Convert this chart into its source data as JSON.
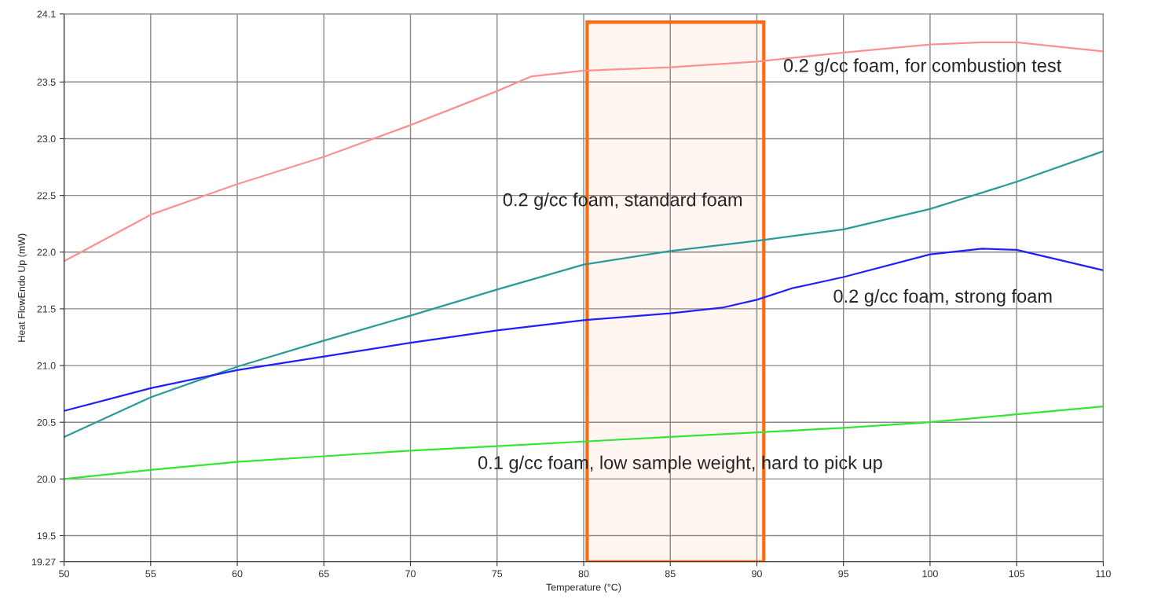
{
  "chart_data": {
    "type": "line",
    "xlabel": "Temperature (°C)",
    "ylabel": "Heat FlowEndo Up (mW)",
    "xlim": [
      50,
      110
    ],
    "xticks": [
      50,
      55,
      60,
      65,
      70,
      75,
      80,
      85,
      90,
      95,
      100,
      105,
      110
    ],
    "ylim": [
      19.27,
      24.1
    ],
    "yticks": [
      19.27,
      19.5,
      {
        "value": 20,
        "label": "20.0"
      },
      20.5,
      {
        "value": 21,
        "label": "21.0"
      },
      21.5,
      {
        "value": 22,
        "label": "22.0"
      },
      22.5,
      {
        "value": 23,
        "label": "23.0"
      },
      23.5,
      24.1
    ],
    "grid": true,
    "marker": "none",
    "line_style": "solid",
    "series": [
      {
        "color": "#ff9090",
        "x": [
          50,
          55,
          60,
          65,
          70,
          75,
          77,
          80,
          85,
          90,
          95,
          100,
          103,
          105,
          110
        ],
        "values": [
          21.92,
          22.33,
          22.6,
          22.84,
          23.12,
          23.42,
          23.55,
          23.6,
          23.63,
          23.68,
          23.76,
          23.83,
          23.85,
          23.85,
          23.77
        ]
      },
      {
        "color": "#2a9a9a",
        "x": [
          50,
          55,
          60,
          65,
          70,
          75,
          80,
          85,
          90,
          95,
          100,
          105,
          110
        ],
        "values": [
          20.37,
          20.72,
          20.99,
          21.22,
          21.44,
          21.67,
          21.89,
          22.01,
          22.1,
          22.2,
          22.38,
          22.62,
          22.89
        ]
      },
      {
        "color": "#2020ff",
        "x": [
          50,
          55,
          60,
          65,
          70,
          75,
          80,
          85,
          88,
          90,
          92,
          95,
          100,
          103,
          105,
          110
        ],
        "values": [
          20.6,
          20.8,
          20.96,
          21.08,
          21.2,
          21.31,
          21.4,
          21.46,
          21.51,
          21.58,
          21.68,
          21.78,
          21.98,
          22.03,
          22.02,
          21.84
        ]
      },
      {
        "color": "#33e633",
        "x": [
          50,
          55,
          60,
          65,
          70,
          75,
          80,
          85,
          90,
          95,
          100,
          105,
          110
        ],
        "values": [
          20.0,
          20.08,
          20.15,
          20.2,
          20.25,
          20.29,
          20.33,
          20.37,
          20.41,
          20.45,
          20.5,
          20.57,
          20.64
        ]
      }
    ],
    "bands": [
      {
        "axis": "x",
        "from": 80.2,
        "to": 90.4,
        "color": "#ff6a10"
      }
    ],
    "annotations": [
      "0.2 g/cc foam, for combustion test",
      "0.2 g/cc foam, standard foam",
      "0.2 g/cc foam, strong foam",
      "0.1 g/cc foam, low sample weight, hard to pick up"
    ]
  }
}
